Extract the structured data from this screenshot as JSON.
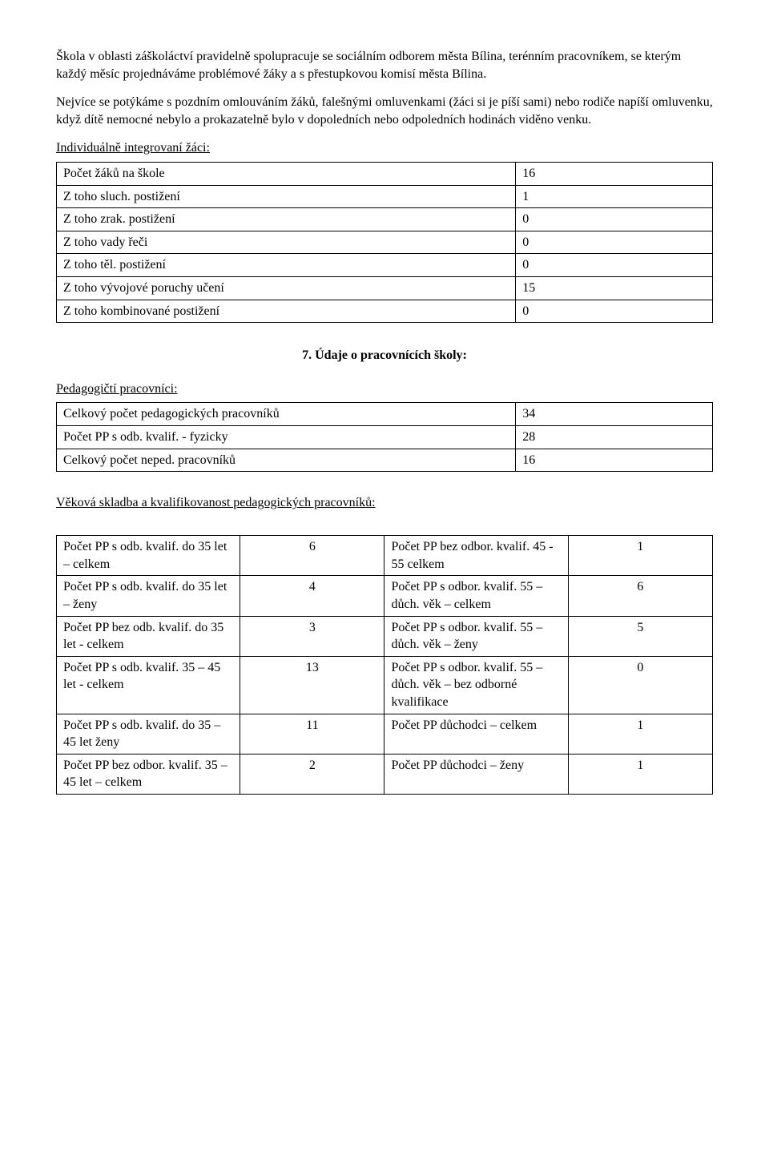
{
  "para1": "Škola v oblasti záškoláctví pravidelně spolupracuje se sociálním odborem města Bílina, terénním pracovníkem, se kterým každý měsíc projednáváme problémové žáky a s přestupkovou komisí města Bílina.",
  "para2": "Nejvíce se potýkáme s pozdním omlouváním žáků, falešnými omluvenkami (žáci si je píší sami) nebo rodiče napíší omluvenku, když dítě nemocné nebylo a prokazatelně bylo v dopoledních nebo odpoledních hodinách viděno venku.",
  "integHeading": "Individuálně integrovaní žáci:",
  "integrated": {
    "rows": [
      {
        "label": "Počet žáků na škole",
        "value": "16"
      },
      {
        "label": "Z toho sluch. postižení",
        "value": " 1"
      },
      {
        "label": "Z toho zrak. postižení",
        "value": " 0"
      },
      {
        "label": "Z toho vady řeči",
        "value": " 0"
      },
      {
        "label": "Z toho těl. postižení",
        "value": " 0"
      },
      {
        "label": "Z toho vývojové poruchy učení",
        "value": "15"
      },
      {
        "label": "Z toho kombinované postižení",
        "value": " 0"
      }
    ]
  },
  "sectionTitle": "7.  Údaje o pracovnících školy:",
  "pedHeading": "Pedagogičtí pracovníci:",
  "pedag": {
    "rows": [
      {
        "label": "Celkový počet pedagogických pracovníků",
        "value": "34"
      },
      {
        "label": "Počet PP s odb. kvalif. - fyzicky",
        "value": "28"
      },
      {
        "label": "Celkový počet neped. pracovníků",
        "value": "16"
      }
    ]
  },
  "ageHeading": "Věková skladba a kvalifikovanost pedagogických pracovníků:",
  "ageTable": {
    "rows": [
      {
        "l1": "Počet PP s odb. kvalif. do 35 let – celkem",
        "v1": "6",
        "l2": "Počet PP bez odbor. kvalif. 45 - 55 celkem",
        "v2": "1"
      },
      {
        "l1": "Počet PP s odb. kvalif. do 35 let – ženy",
        "v1": "4",
        "l2": "Počet PP s  odbor. kvalif. 55 – důch. věk – celkem",
        "v2": "6"
      },
      {
        "l1": "Počet PP bez odb. kvalif. do 35 let - celkem",
        "v1": "3",
        "l2": "Počet PP s odbor. kvalif. 55 – důch. věk – ženy",
        "v2": "5"
      },
      {
        "l1": "Počet PP s odb. kvalif. 35 – 45 let - celkem",
        "v1": "13",
        "l2": "Počet PP s odbor. kvalif. 55 – důch. věk – bez odborné kvalifikace",
        "v2": "0"
      },
      {
        "l1": "Počet PP s odb. kvalif. do 35 – 45  let ženy",
        "v1": "11",
        "l2": "Počet PP důchodci – celkem",
        "v2": "1"
      },
      {
        "l1": "Počet PP bez odbor. kvalif. 35 – 45 let – celkem",
        "v1": "2",
        "l2": "Počet PP důchodci – ženy",
        "v2": "1"
      }
    ]
  }
}
